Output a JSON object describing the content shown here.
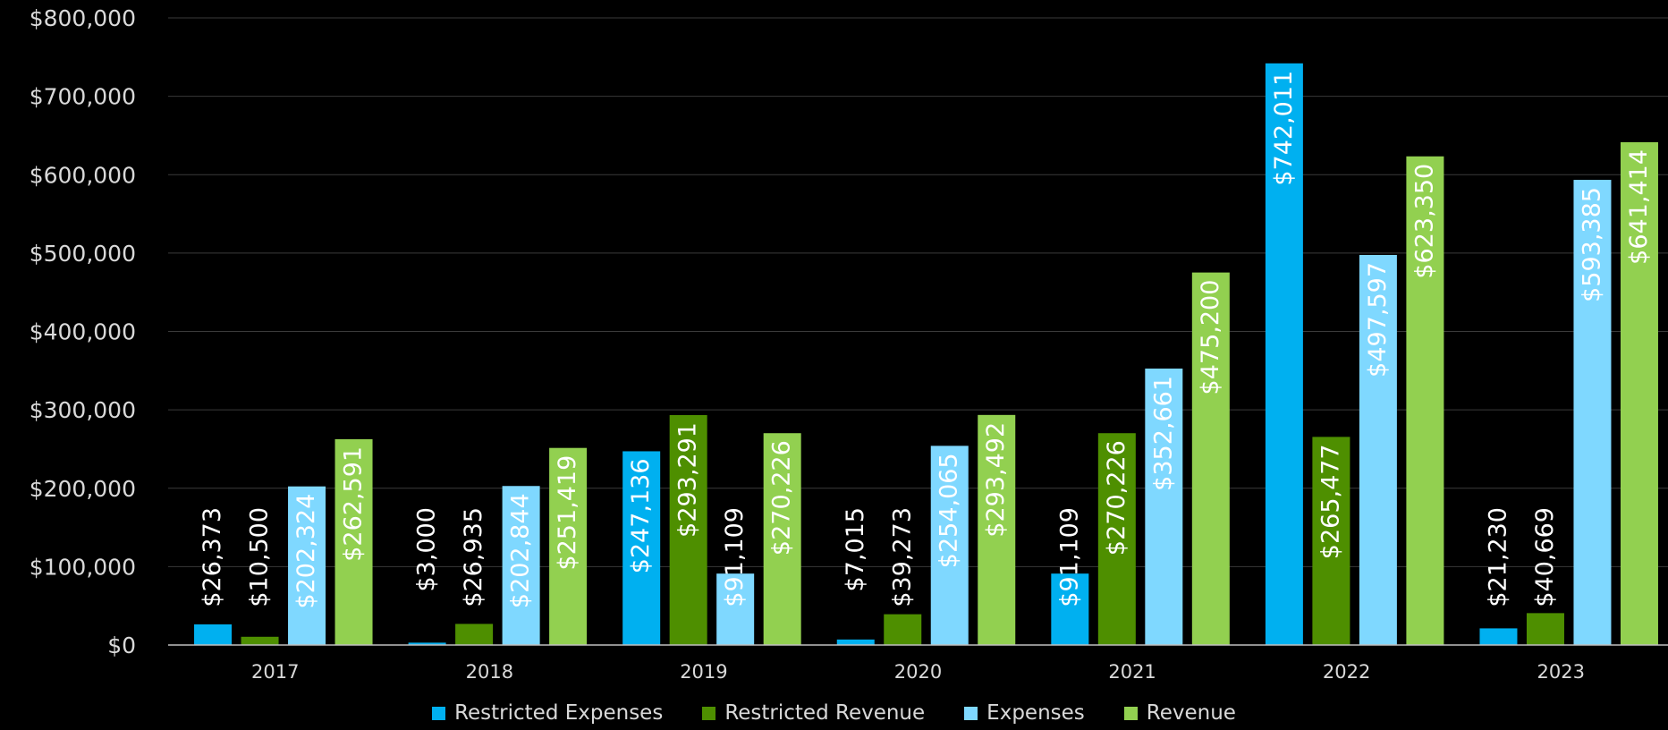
{
  "chart_data": {
    "type": "bar",
    "categories": [
      "2017",
      "2018",
      "2019",
      "2020",
      "2021",
      "2022",
      "2023"
    ],
    "series": [
      {
        "name": "Restricted Expenses",
        "color": "#00b0f0",
        "values": [
          26373,
          3000,
          247136,
          7015,
          91109,
          742011,
          21230
        ],
        "labels": [
          "$26,373",
          "$3,000",
          "$247,136",
          "$7,015",
          "$91,109",
          "$742,011",
          "$21,230"
        ]
      },
      {
        "name": "Restricted Revenue",
        "color": "#4e8f00",
        "values": [
          10500,
          26935,
          293291,
          39273,
          270226,
          265477,
          40669
        ],
        "labels": [
          "$10,500",
          "$26,935",
          "$293,291",
          "$39,273",
          "$270,226",
          "$265,477",
          "$40,669"
        ]
      },
      {
        "name": "Expenses",
        "color": "#7fd8ff",
        "values": [
          202324,
          202844,
          91109,
          254065,
          352661,
          497597,
          593385
        ],
        "labels": [
          "$202,324",
          "$202,844",
          "$91,109",
          "$254,065",
          "$352,661",
          "$497,597",
          "$593,385"
        ]
      },
      {
        "name": "Revenue",
        "color": "#92d050",
        "values": [
          262591,
          251419,
          270226,
          293492,
          475200,
          623350,
          641414
        ],
        "labels": [
          "$262,591",
          "$251,419",
          "$270,226",
          "$293,492",
          "$475,200",
          "$623,350",
          "$641,414"
        ]
      }
    ],
    "yticks": [
      0,
      100000,
      200000,
      300000,
      400000,
      500000,
      600000,
      700000,
      800000
    ],
    "ytick_labels": [
      "$0",
      "$100,000",
      "$200,000",
      "$300,000",
      "$400,000",
      "$500,000",
      "$600,000",
      "$700,000",
      "$800,000"
    ],
    "ylim": [
      0,
      800000
    ],
    "grid": true,
    "legend_position": "bottom",
    "title": "",
    "xlabel": "",
    "ylabel": ""
  }
}
